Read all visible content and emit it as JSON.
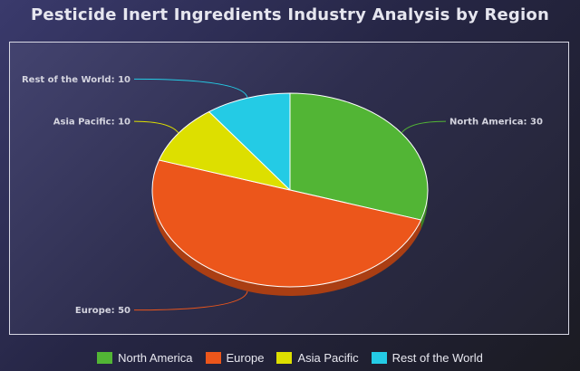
{
  "chart_data": {
    "type": "pie",
    "title": "Pesticide Inert Ingredients Industry Analysis by Region",
    "categories": [
      "North America",
      "Europe",
      "Asia Pacific",
      "Rest of the World"
    ],
    "values": [
      30,
      50,
      10,
      10
    ],
    "colors": [
      "#52b535",
      "#ec561b",
      "#dddf00",
      "#24cbe5"
    ],
    "data_labels": [
      "North America: 30",
      "Europe: 50",
      "Asia Pacific: 10",
      "Rest of the World: 10"
    ],
    "legend_position": "bottom"
  }
}
